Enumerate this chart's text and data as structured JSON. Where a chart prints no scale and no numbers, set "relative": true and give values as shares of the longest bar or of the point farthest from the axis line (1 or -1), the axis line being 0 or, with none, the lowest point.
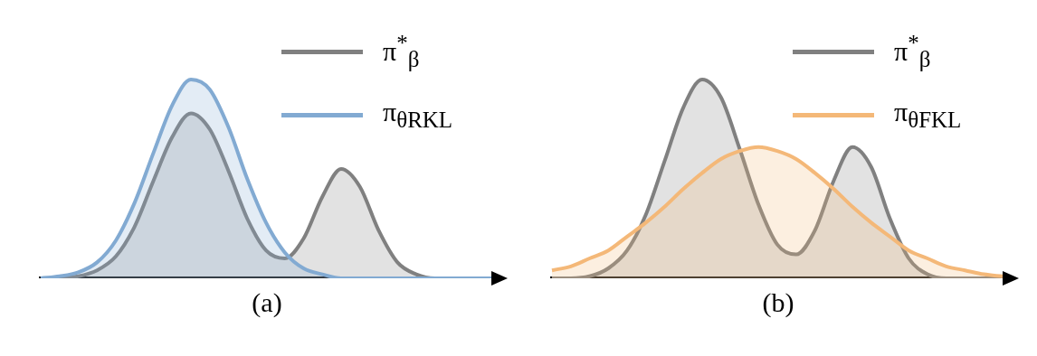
{
  "chart_data": [
    {
      "type": "area",
      "title": "(a)",
      "relative": true,
      "legend": "top right",
      "grid": false,
      "categories": [
        null,
        null,
        null,
        null,
        null,
        null,
        null,
        null,
        null,
        null,
        null,
        null,
        null,
        null,
        null,
        null,
        null,
        null,
        null,
        null,
        null,
        null,
        null,
        null,
        null
      ],
      "series": [
        {
          "name": "π$^{*}$$_{β}$",
          "color": "#808080",
          "values": [
            0,
            0,
            0.01,
            0.04,
            0.11,
            0.26,
            0.49,
            0.71,
            0.83,
            0.75,
            0.54,
            0.3,
            0.14,
            0.1,
            0.2,
            0.41,
            0.55,
            0.46,
            0.24,
            0.08,
            0.02,
            0,
            0,
            0,
            0
          ]
        },
        {
          "name": "π$_{θ}$$_{RKL}$",
          "color": "#82aad2",
          "values": [
            0,
            0.01,
            0.03,
            0.08,
            0.19,
            0.38,
            0.63,
            0.87,
            1.0,
            0.95,
            0.76,
            0.5,
            0.28,
            0.13,
            0.05,
            0.02,
            0,
            0,
            0,
            0,
            0,
            0,
            0,
            0,
            0
          ]
        }
      ]
    },
    {
      "type": "area",
      "title": "(b)",
      "relative": true,
      "legend": "top right",
      "grid": false,
      "categories": [
        null,
        null,
        null,
        null,
        null,
        null,
        null,
        null,
        null,
        null,
        null,
        null,
        null,
        null,
        null,
        null,
        null,
        null,
        null,
        null,
        null,
        null,
        null,
        null,
        null
      ],
      "series": [
        {
          "name": "π$^{*}$$_{β}$",
          "color": "#808080",
          "values": [
            0,
            0,
            0.01,
            0.05,
            0.14,
            0.32,
            0.59,
            0.86,
            1.0,
            0.91,
            0.65,
            0.37,
            0.17,
            0.12,
            0.24,
            0.49,
            0.66,
            0.56,
            0.3,
            0.1,
            0.02,
            0,
            0,
            0,
            0
          ]
        },
        {
          "name": "π$_{θ}$$_{FKL}$",
          "color": "#f4b878",
          "values": [
            0.04,
            0.06,
            0.1,
            0.14,
            0.21,
            0.28,
            0.36,
            0.45,
            0.53,
            0.6,
            0.64,
            0.66,
            0.64,
            0.6,
            0.53,
            0.45,
            0.36,
            0.28,
            0.21,
            0.14,
            0.1,
            0.06,
            0.04,
            0.02,
            0.01
          ]
        }
      ]
    }
  ]
}
